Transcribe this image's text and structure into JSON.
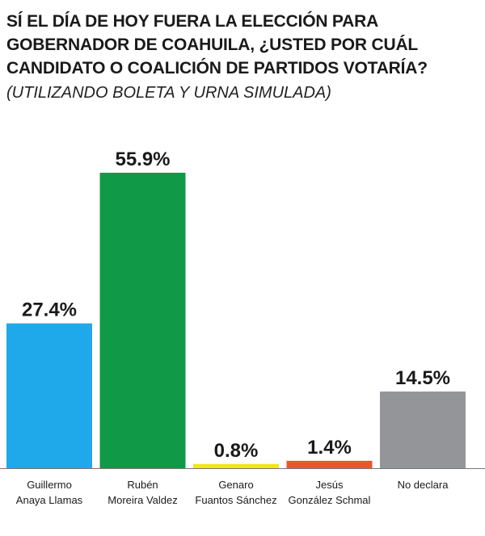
{
  "header": {
    "title": "SÍ EL DÍA DE HOY FUERA LA ELECCIÓN PARA GOBERNADOR DE COAHUILA, ¿USTED POR CUÁL CANDIDATO O COALICIÓN DE PARTIDOS VOTARÍA?",
    "subtitle": "(UTILIZANDO BOLETA Y URNA SIMULADA)"
  },
  "chart_data": {
    "type": "bar",
    "title": "SÍ EL DÍA DE HOY FUERA LA ELECCIÓN PARA GOBERNADOR DE COAHUILA, ¿USTED POR CUÁL CANDIDATO O COALICIÓN DE PARTIDOS VOTARÍA?",
    "subtitle": "(UTILIZANDO BOLETA Y URNA SIMULADA)",
    "xlabel": "",
    "ylabel": "",
    "ylim": [
      0,
      55.9
    ],
    "grid": false,
    "legend": "none",
    "categories": [
      [
        "Guillermo",
        "Anaya Llamas"
      ],
      [
        "Rubén",
        "Moreira Valdez"
      ],
      [
        "Genaro",
        "Fuantos Sánchez"
      ],
      [
        "Jesús",
        "González Schmal"
      ],
      [
        "No declara"
      ]
    ],
    "values": [
      27.4,
      55.9,
      0.8,
      1.4,
      14.5
    ],
    "value_labels": [
      "27.4%",
      "55.9%",
      "0.8%",
      "1.4%",
      "14.5%"
    ],
    "colors": [
      "#1fa8ea",
      "#109a48",
      "#f2e51c",
      "#e9572a",
      "#939598"
    ]
  }
}
